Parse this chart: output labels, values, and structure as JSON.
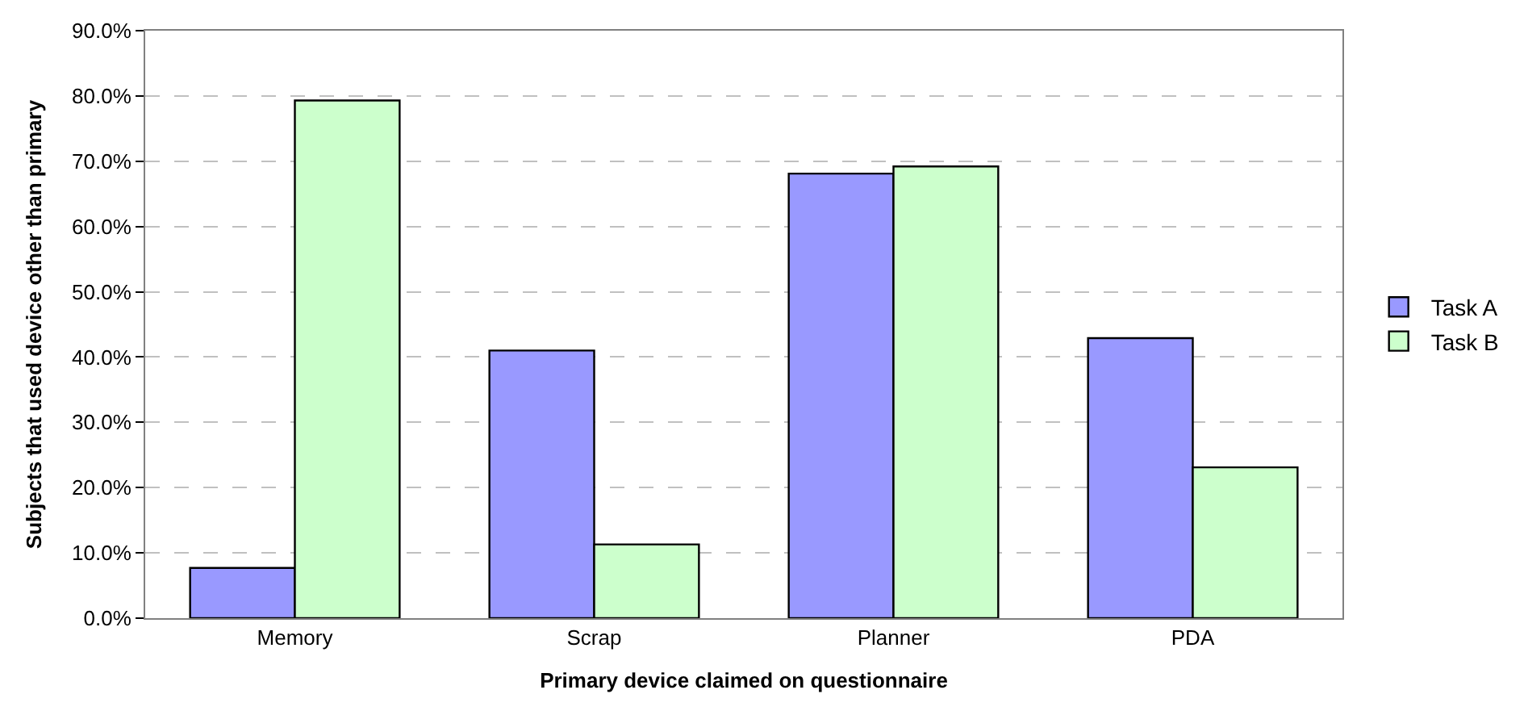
{
  "chart_data": {
    "type": "bar",
    "xlabel": "Primary device claimed on questionnaire",
    "ylabel": "Subjects that used device other than primary",
    "categories": [
      "Memory",
      "Scrap",
      "Planner",
      "PDA"
    ],
    "series": [
      {
        "name": "Task A",
        "color": "#9999ff",
        "values": [
          7.7,
          41.0,
          68.1,
          42.9
        ]
      },
      {
        "name": "Task B",
        "color": "#ccffcc",
        "values": [
          79.3,
          11.3,
          69.2,
          23.1
        ]
      }
    ],
    "ylim": [
      0,
      90
    ],
    "yticks": [
      {
        "value": 0,
        "label": "0.0%"
      },
      {
        "value": 10,
        "label": "10.0%"
      },
      {
        "value": 20,
        "label": "20.0%"
      },
      {
        "value": 30,
        "label": "30.0%"
      },
      {
        "value": 40,
        "label": "40.0%"
      },
      {
        "value": 50,
        "label": "50.0%"
      },
      {
        "value": 60,
        "label": "60.0%"
      },
      {
        "value": 70,
        "label": "70.0%"
      },
      {
        "value": 80,
        "label": "80.0%"
      },
      {
        "value": 90,
        "label": "90.0%"
      }
    ],
    "grid": "y",
    "legend": "right"
  }
}
